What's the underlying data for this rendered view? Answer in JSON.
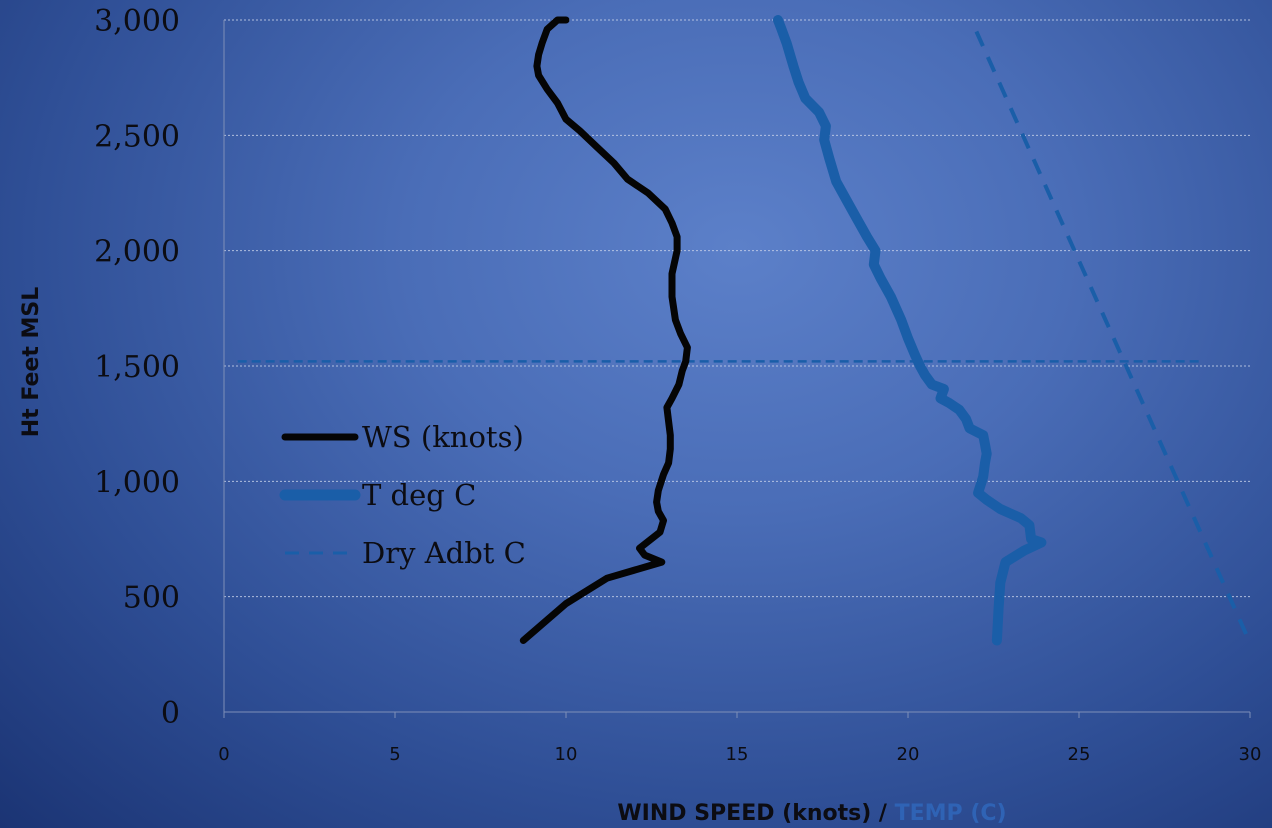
{
  "chart_data": {
    "type": "line",
    "ylabel": "Ht Feet MSL",
    "xlabel_part1": "WIND SPEED (knots) / ",
    "xlabel_part2": "TEMP (C)",
    "xlim": [
      0,
      30
    ],
    "ylim": [
      0,
      3000
    ],
    "x_ticks": [
      "0",
      "5",
      "10",
      "15",
      "20",
      "25",
      "30"
    ],
    "y_ticks": [
      "0",
      "500",
      "1,000",
      "1,500",
      "2,000",
      "2,500",
      "3,000"
    ],
    "x_tick_values": [
      0,
      5,
      10,
      15,
      20,
      25,
      30
    ],
    "y_tick_values": [
      0,
      500,
      1000,
      1500,
      2000,
      2500,
      3000
    ],
    "grid": "horizontal",
    "legend_position": "left",
    "colors": {
      "ws": "#050505",
      "temp": "#1a5ea8",
      "dry": "#1a5ea8",
      "reference": "#1a5ea8",
      "ylabel": "#0c0c12",
      "xlabel_part1": "#0c0c12",
      "xlabel_part2": "#2f63b5",
      "grid": "#c5d0e8",
      "axis": "#7e8fb8"
    },
    "reference_line": {
      "y": 1520,
      "x_range": [
        0.4,
        28.6
      ]
    },
    "series": [
      {
        "name": "WS (knots)",
        "style": "solid-thick",
        "points": [
          [
            8.75,
            310
          ],
          [
            10.0,
            470
          ],
          [
            11.2,
            580
          ],
          [
            12.8,
            650
          ],
          [
            12.3,
            680
          ],
          [
            12.15,
            710
          ],
          [
            12.75,
            780
          ],
          [
            12.85,
            830
          ],
          [
            12.7,
            870
          ],
          [
            12.65,
            910
          ],
          [
            12.7,
            960
          ],
          [
            12.85,
            1030
          ],
          [
            13.0,
            1080
          ],
          [
            13.05,
            1140
          ],
          [
            13.05,
            1200
          ],
          [
            13.0,
            1260
          ],
          [
            12.95,
            1320
          ],
          [
            13.1,
            1360
          ],
          [
            13.3,
            1420
          ],
          [
            13.4,
            1480
          ],
          [
            13.5,
            1520
          ],
          [
            13.55,
            1580
          ],
          [
            13.35,
            1640
          ],
          [
            13.2,
            1700
          ],
          [
            13.1,
            1800
          ],
          [
            13.1,
            1900
          ],
          [
            13.25,
            2000
          ],
          [
            13.25,
            2060
          ],
          [
            13.1,
            2120
          ],
          [
            12.9,
            2180
          ],
          [
            12.4,
            2250
          ],
          [
            11.8,
            2310
          ],
          [
            11.4,
            2380
          ],
          [
            10.9,
            2450
          ],
          [
            10.4,
            2520
          ],
          [
            10.0,
            2570
          ],
          [
            9.75,
            2640
          ],
          [
            9.45,
            2700
          ],
          [
            9.2,
            2760
          ],
          [
            9.15,
            2800
          ],
          [
            9.2,
            2850
          ],
          [
            9.3,
            2900
          ],
          [
            9.45,
            2960
          ],
          [
            9.75,
            3000
          ],
          [
            10.0,
            3000
          ]
        ]
      },
      {
        "name": "T deg C",
        "style": "solid-thicker",
        "points": [
          [
            22.6,
            310
          ],
          [
            22.65,
            450
          ],
          [
            22.7,
            560
          ],
          [
            22.85,
            650
          ],
          [
            23.4,
            700
          ],
          [
            23.9,
            735
          ],
          [
            23.6,
            750
          ],
          [
            23.55,
            810
          ],
          [
            23.3,
            840
          ],
          [
            22.7,
            880
          ],
          [
            22.3,
            920
          ],
          [
            22.05,
            950
          ],
          [
            22.2,
            1020
          ],
          [
            22.25,
            1080
          ],
          [
            22.3,
            1120
          ],
          [
            22.25,
            1160
          ],
          [
            22.2,
            1200
          ],
          [
            21.8,
            1230
          ],
          [
            21.7,
            1270
          ],
          [
            21.5,
            1310
          ],
          [
            21.2,
            1340
          ],
          [
            20.95,
            1360
          ],
          [
            21.05,
            1400
          ],
          [
            20.7,
            1420
          ],
          [
            20.5,
            1460
          ],
          [
            20.35,
            1500
          ],
          [
            20.2,
            1550
          ],
          [
            20.0,
            1620
          ],
          [
            19.8,
            1700
          ],
          [
            19.5,
            1800
          ],
          [
            19.2,
            1880
          ],
          [
            19.0,
            1940
          ],
          [
            19.05,
            2000
          ],
          [
            18.8,
            2060
          ],
          [
            18.5,
            2140
          ],
          [
            18.2,
            2220
          ],
          [
            17.9,
            2300
          ],
          [
            17.7,
            2400
          ],
          [
            17.55,
            2480
          ],
          [
            17.6,
            2540
          ],
          [
            17.4,
            2600
          ],
          [
            17.0,
            2660
          ],
          [
            16.8,
            2730
          ],
          [
            16.65,
            2800
          ],
          [
            16.45,
            2900
          ],
          [
            16.3,
            2960
          ],
          [
            16.2,
            3000
          ]
        ]
      },
      {
        "name": "Dry Adbt C",
        "style": "dashed",
        "points": [
          [
            22.0,
            2950
          ],
          [
            30.0,
            300
          ]
        ]
      }
    ]
  }
}
